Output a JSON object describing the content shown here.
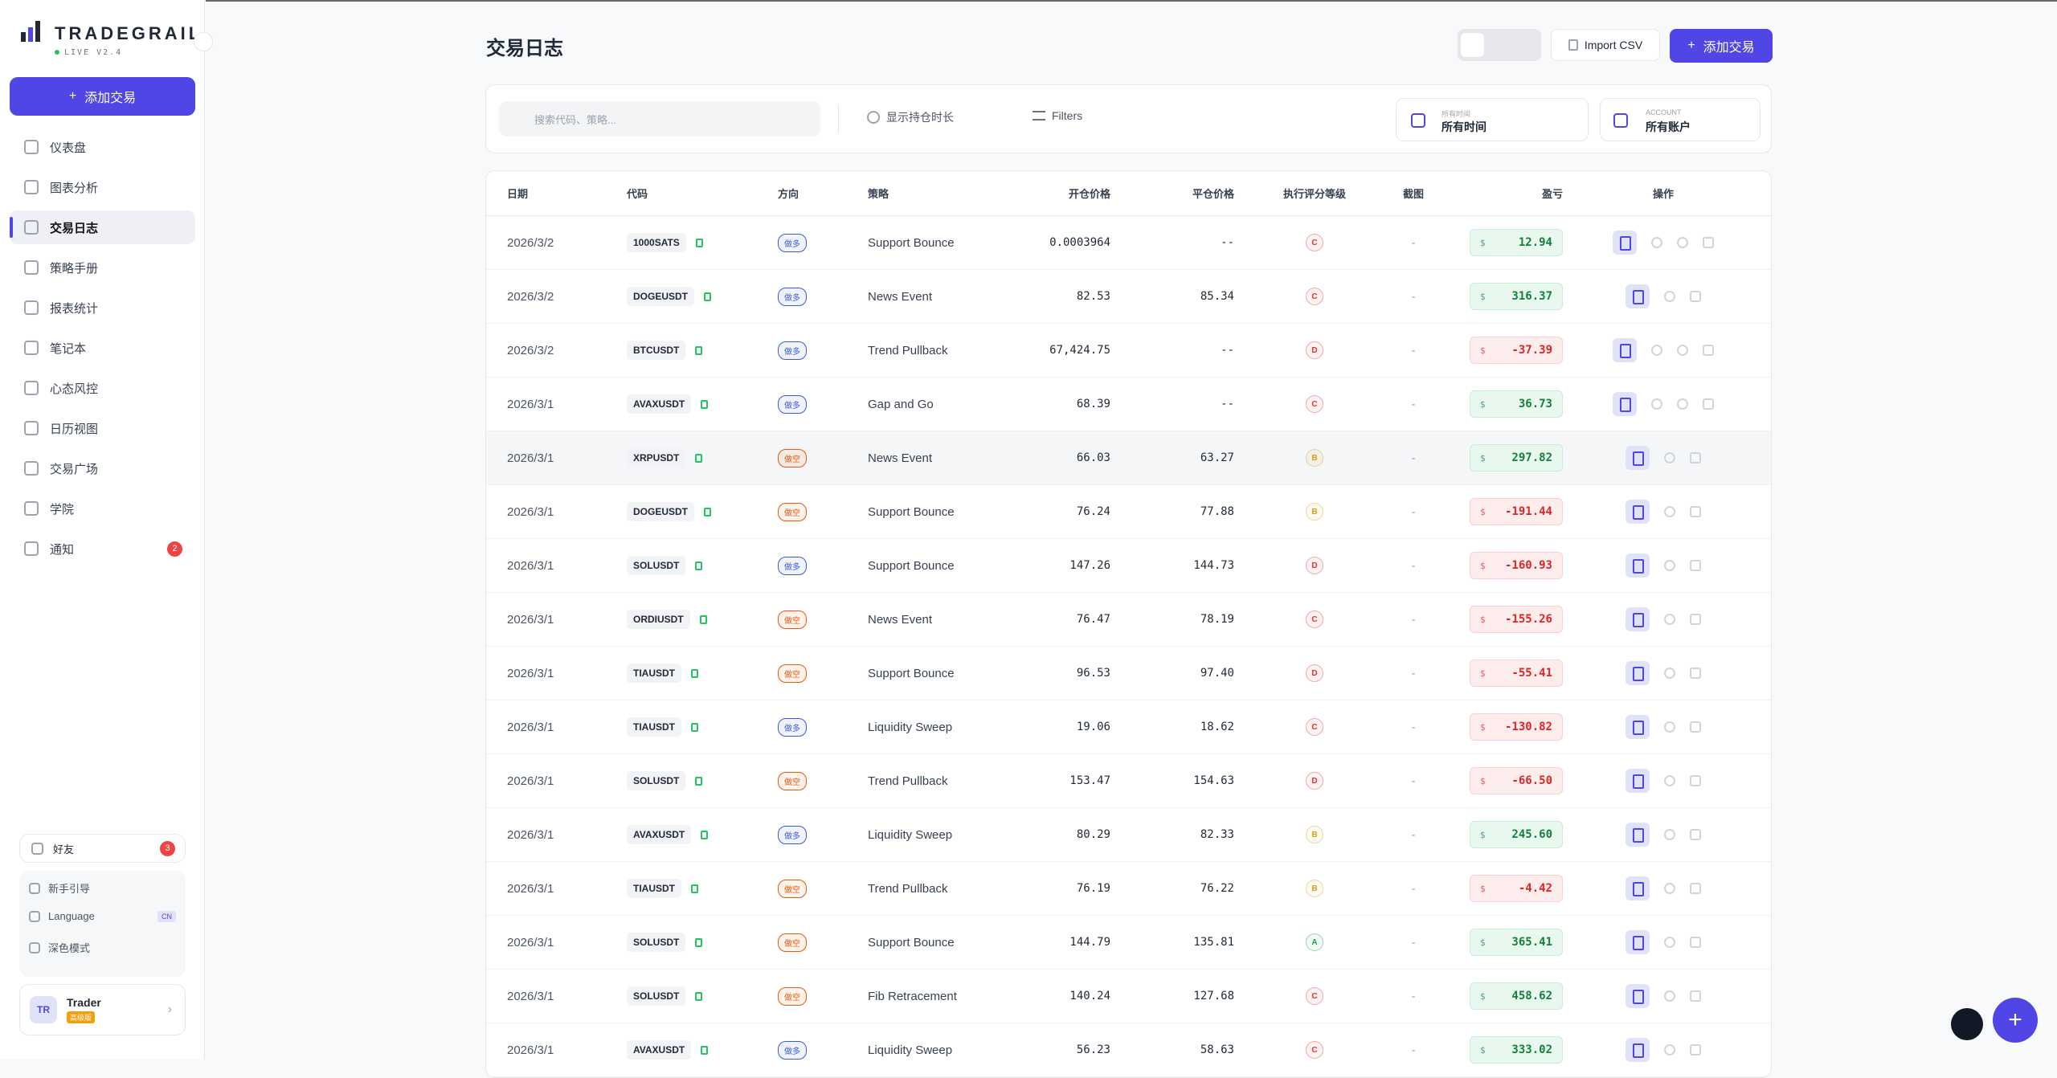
{
  "brand": {
    "name": "TRADEGRAIL",
    "version": "LIVE V2.4"
  },
  "sidebar": {
    "add_button": "添加交易",
    "nav": [
      {
        "label": "仪表盘"
      },
      {
        "label": "图表分析"
      },
      {
        "label": "交易日志",
        "active": true
      },
      {
        "label": "策略手册"
      },
      {
        "label": "报表统计"
      },
      {
        "label": "笔记本"
      },
      {
        "label": "心态风控"
      },
      {
        "label": "日历视图"
      },
      {
        "label": "交易广场"
      },
      {
        "label": "学院"
      },
      {
        "label": "通知",
        "badge": "2"
      }
    ],
    "friends": {
      "label": "好友",
      "badge": "3"
    },
    "links": [
      "新手引导",
      "Language",
      "深色模式"
    ],
    "language_tag": "CN",
    "user": {
      "initials": "TR",
      "name": "Trader",
      "plan": "高级版"
    }
  },
  "header": {
    "title": "交易日志",
    "import_button": "Import CSV",
    "add_button": "添加交易"
  },
  "toolbar": {
    "search_placeholder": "搜索代码、策略...",
    "duration_toggle": "显示持仓时长",
    "filters": "Filters",
    "time_filter": {
      "caption": "所有时间",
      "value": "所有时间"
    },
    "account_filter": {
      "caption": "ACCOUNT",
      "value": "所有账户"
    }
  },
  "table": {
    "columns": [
      "日期",
      "代码",
      "方向",
      "策略",
      "开仓价格",
      "平仓价格",
      "执行评分等级",
      "截图",
      "盈亏",
      "操作"
    ],
    "currency": "$",
    "side_colors": {
      "做多": "#3b5bdb",
      "做空": "#e8590c"
    },
    "grade_colors": {
      "A": "#16a34a",
      "B": "#d4a017",
      "C": "#e03131",
      "D": "#e03131"
    },
    "rows": [
      {
        "date": "2026/3/2",
        "symbol": "1000SATS",
        "side": "做多",
        "strategy": "Support Bounce",
        "entry": "0.0003964",
        "exit": "--",
        "grade": "C",
        "screenshot": "-",
        "pnl": "12.94",
        "open": true
      },
      {
        "date": "2026/3/2",
        "symbol": "DOGEUSDT",
        "side": "做多",
        "strategy": "News Event",
        "entry": "82.53",
        "exit": "85.34",
        "grade": "C",
        "screenshot": "-",
        "pnl": "316.37",
        "open": false
      },
      {
        "date": "2026/3/2",
        "symbol": "BTCUSDT",
        "side": "做多",
        "strategy": "Trend Pullback",
        "entry": "67,424.75",
        "exit": "--",
        "grade": "D",
        "screenshot": "-",
        "pnl": "-37.39",
        "open": true
      },
      {
        "date": "2026/3/1",
        "symbol": "AVAXUSDT",
        "side": "做多",
        "strategy": "Gap and Go",
        "entry": "68.39",
        "exit": "--",
        "grade": "C",
        "screenshot": "-",
        "pnl": "36.73",
        "open": true
      },
      {
        "date": "2026/3/1",
        "symbol": "XRPUSDT",
        "side": "做空",
        "strategy": "News Event",
        "entry": "66.03",
        "exit": "63.27",
        "grade": "B",
        "screenshot": "-",
        "pnl": "297.82",
        "open": false
      },
      {
        "date": "2026/3/1",
        "symbol": "DOGEUSDT",
        "side": "做空",
        "strategy": "Support Bounce",
        "entry": "76.24",
        "exit": "77.88",
        "grade": "B",
        "screenshot": "-",
        "pnl": "-191.44",
        "open": false
      },
      {
        "date": "2026/3/1",
        "symbol": "SOLUSDT",
        "side": "做多",
        "strategy": "Support Bounce",
        "entry": "147.26",
        "exit": "144.73",
        "grade": "D",
        "screenshot": "-",
        "pnl": "-160.93",
        "open": false
      },
      {
        "date": "2026/3/1",
        "symbol": "ORDIUSDT",
        "side": "做空",
        "strategy": "News Event",
        "entry": "76.47",
        "exit": "78.19",
        "grade": "C",
        "screenshot": "-",
        "pnl": "-155.26",
        "open": false
      },
      {
        "date": "2026/3/1",
        "symbol": "TIAUSDT",
        "side": "做空",
        "strategy": "Support Bounce",
        "entry": "96.53",
        "exit": "97.40",
        "grade": "D",
        "screenshot": "-",
        "pnl": "-55.41",
        "open": false
      },
      {
        "date": "2026/3/1",
        "symbol": "TIAUSDT",
        "side": "做多",
        "strategy": "Liquidity Sweep",
        "entry": "19.06",
        "exit": "18.62",
        "grade": "C",
        "screenshot": "-",
        "pnl": "-130.82",
        "open": false
      },
      {
        "date": "2026/3/1",
        "symbol": "SOLUSDT",
        "side": "做空",
        "strategy": "Trend Pullback",
        "entry": "153.47",
        "exit": "154.63",
        "grade": "D",
        "screenshot": "-",
        "pnl": "-66.50",
        "open": false
      },
      {
        "date": "2026/3/1",
        "symbol": "AVAXUSDT",
        "side": "做多",
        "strategy": "Liquidity Sweep",
        "entry": "80.29",
        "exit": "82.33",
        "grade": "B",
        "screenshot": "-",
        "pnl": "245.60",
        "open": false
      },
      {
        "date": "2026/3/1",
        "symbol": "TIAUSDT",
        "side": "做空",
        "strategy": "Trend Pullback",
        "entry": "76.19",
        "exit": "76.22",
        "grade": "B",
        "screenshot": "-",
        "pnl": "-4.42",
        "open": false
      },
      {
        "date": "2026/3/1",
        "symbol": "SOLUSDT",
        "side": "做空",
        "strategy": "Support Bounce",
        "entry": "144.79",
        "exit": "135.81",
        "grade": "A",
        "screenshot": "-",
        "pnl": "365.41",
        "open": false
      },
      {
        "date": "2026/3/1",
        "symbol": "SOLUSDT",
        "side": "做空",
        "strategy": "Fib Retracement",
        "entry": "140.24",
        "exit": "127.68",
        "grade": "C",
        "screenshot": "-",
        "pnl": "458.62",
        "open": false
      },
      {
        "date": "2026/3/1",
        "symbol": "AVAXUSDT",
        "side": "做多",
        "strategy": "Liquidity Sweep",
        "entry": "56.23",
        "exit": "58.63",
        "grade": "C",
        "screenshot": "-",
        "pnl": "333.02",
        "open": false
      }
    ]
  }
}
